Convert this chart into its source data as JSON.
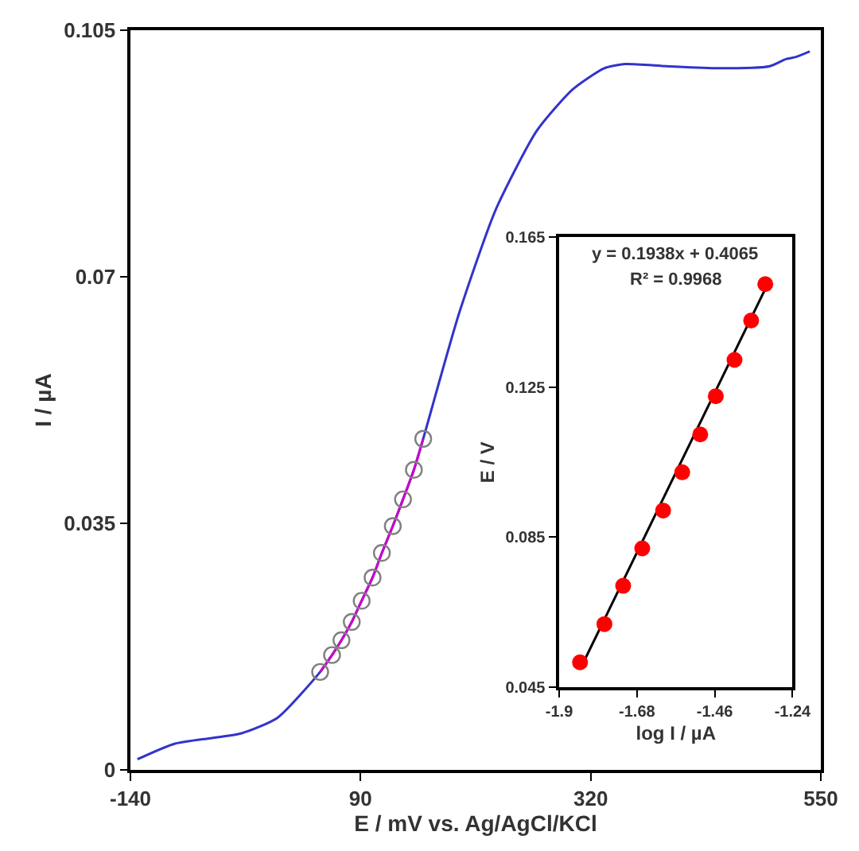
{
  "chart_data": [
    {
      "type": "line",
      "xlabel": "E / mV vs. Ag/AgCl/KCl",
      "ylabel": "I / µA",
      "xlim": [
        -140,
        550
      ],
      "ylim": [
        0,
        0.105
      ],
      "xticks": [
        -140,
        90,
        320,
        550
      ],
      "yticks": [
        0,
        0.035,
        0.07,
        0.105
      ],
      "series": [
        {
          "color": "#3333cc",
          "marker": "none",
          "x": [
            -133,
            -96,
            -29,
            7,
            49.6,
            61.5,
            70.9,
            81.2,
            91.1,
            102,
            111.3,
            122.2,
            132.4,
            143.3,
            152.6,
            188,
            225,
            266,
            302,
            333.5,
            354,
            396,
            447,
            499,
            515,
            525,
            539
          ],
          "values": [
            0.0015,
            0.0037,
            0.0052,
            0.0074,
            0.0139,
            0.0163,
            0.0184,
            0.021,
            0.024,
            0.0273,
            0.0308,
            0.0346,
            0.0384,
            0.0426,
            0.047,
            0.0646,
            0.0795,
            0.0907,
            0.0966,
            0.0996,
            0.1002,
            0.0999,
            0.0996,
            0.0999,
            0.1009,
            0.1012,
            0.102
          ]
        },
        {
          "color": "#cc00cc",
          "marker": "none",
          "x": [
            49.6,
            61.5,
            70.9,
            81.2,
            91.1,
            102,
            111.3,
            122.2,
            132.4,
            143.3,
            152.6
          ],
          "values": [
            0.0139,
            0.0163,
            0.0184,
            0.021,
            0.024,
            0.0273,
            0.0308,
            0.0346,
            0.0384,
            0.0426,
            0.047
          ]
        },
        {
          "type": "scatter",
          "color": "#808080",
          "marker": "circle",
          "x": [
            49.6,
            61.5,
            70.9,
            81.2,
            91.1,
            102,
            111.3,
            122.2,
            132.4,
            143.3,
            152.6
          ],
          "values": [
            0.0139,
            0.0163,
            0.0184,
            0.021,
            0.024,
            0.0273,
            0.0308,
            0.0346,
            0.0384,
            0.0426,
            0.047
          ]
        }
      ]
    },
    {
      "type": "scatter",
      "xlabel": "log I / µA",
      "ylabel": "E / V",
      "xlim": [
        -1.9,
        -1.24
      ],
      "ylim": [
        0.045,
        0.165
      ],
      "xticks": [
        -1.9,
        -1.68,
        -1.46,
        -1.24
      ],
      "yticks": [
        0.045,
        0.085,
        0.125,
        0.165
      ],
      "annotations": [
        "y = 0.1938x + 0.4065",
        "R² = 0.9968"
      ],
      "series": [
        {
          "type": "line",
          "color": "#000000",
          "marker": "none",
          "x": [
            -1.84,
            -1.31
          ],
          "values": [
            0.0499,
            0.1526
          ]
        },
        {
          "color": "#ff0000",
          "marker": "circle",
          "x": [
            -1.841,
            -1.772,
            -1.719,
            -1.665,
            -1.606,
            -1.552,
            -1.501,
            -1.457,
            -1.404,
            -1.357,
            -1.317
          ],
          "values": [
            0.0516,
            0.0618,
            0.072,
            0.082,
            0.0921,
            0.1023,
            0.1124,
            0.1226,
            0.1323,
            0.1428,
            0.1525
          ]
        }
      ]
    }
  ]
}
